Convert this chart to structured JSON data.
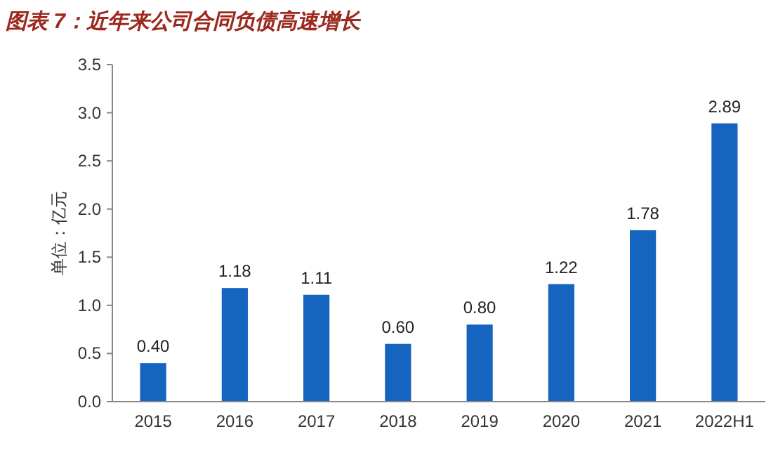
{
  "chart_data": {
    "type": "bar",
    "title": "图表 7：近年来公司合同负债高速增长",
    "ylabel": "单位：亿元",
    "categories": [
      "2015",
      "2016",
      "2017",
      "2018",
      "2019",
      "2020",
      "2021",
      "2022H1"
    ],
    "values": [
      0.4,
      1.18,
      1.11,
      0.6,
      0.8,
      1.22,
      1.78,
      2.89
    ],
    "color": "#1565c0",
    "ylim": [
      0,
      3.5
    ],
    "yticks": [
      "0.0",
      "0.5",
      "1.0",
      "1.5",
      "2.0",
      "2.5",
      "3.0",
      "3.5"
    ],
    "value_labels": [
      "0.40",
      "1.18",
      "1.11",
      "0.60",
      "0.80",
      "1.22",
      "1.78",
      "2.89"
    ],
    "grid": false
  }
}
